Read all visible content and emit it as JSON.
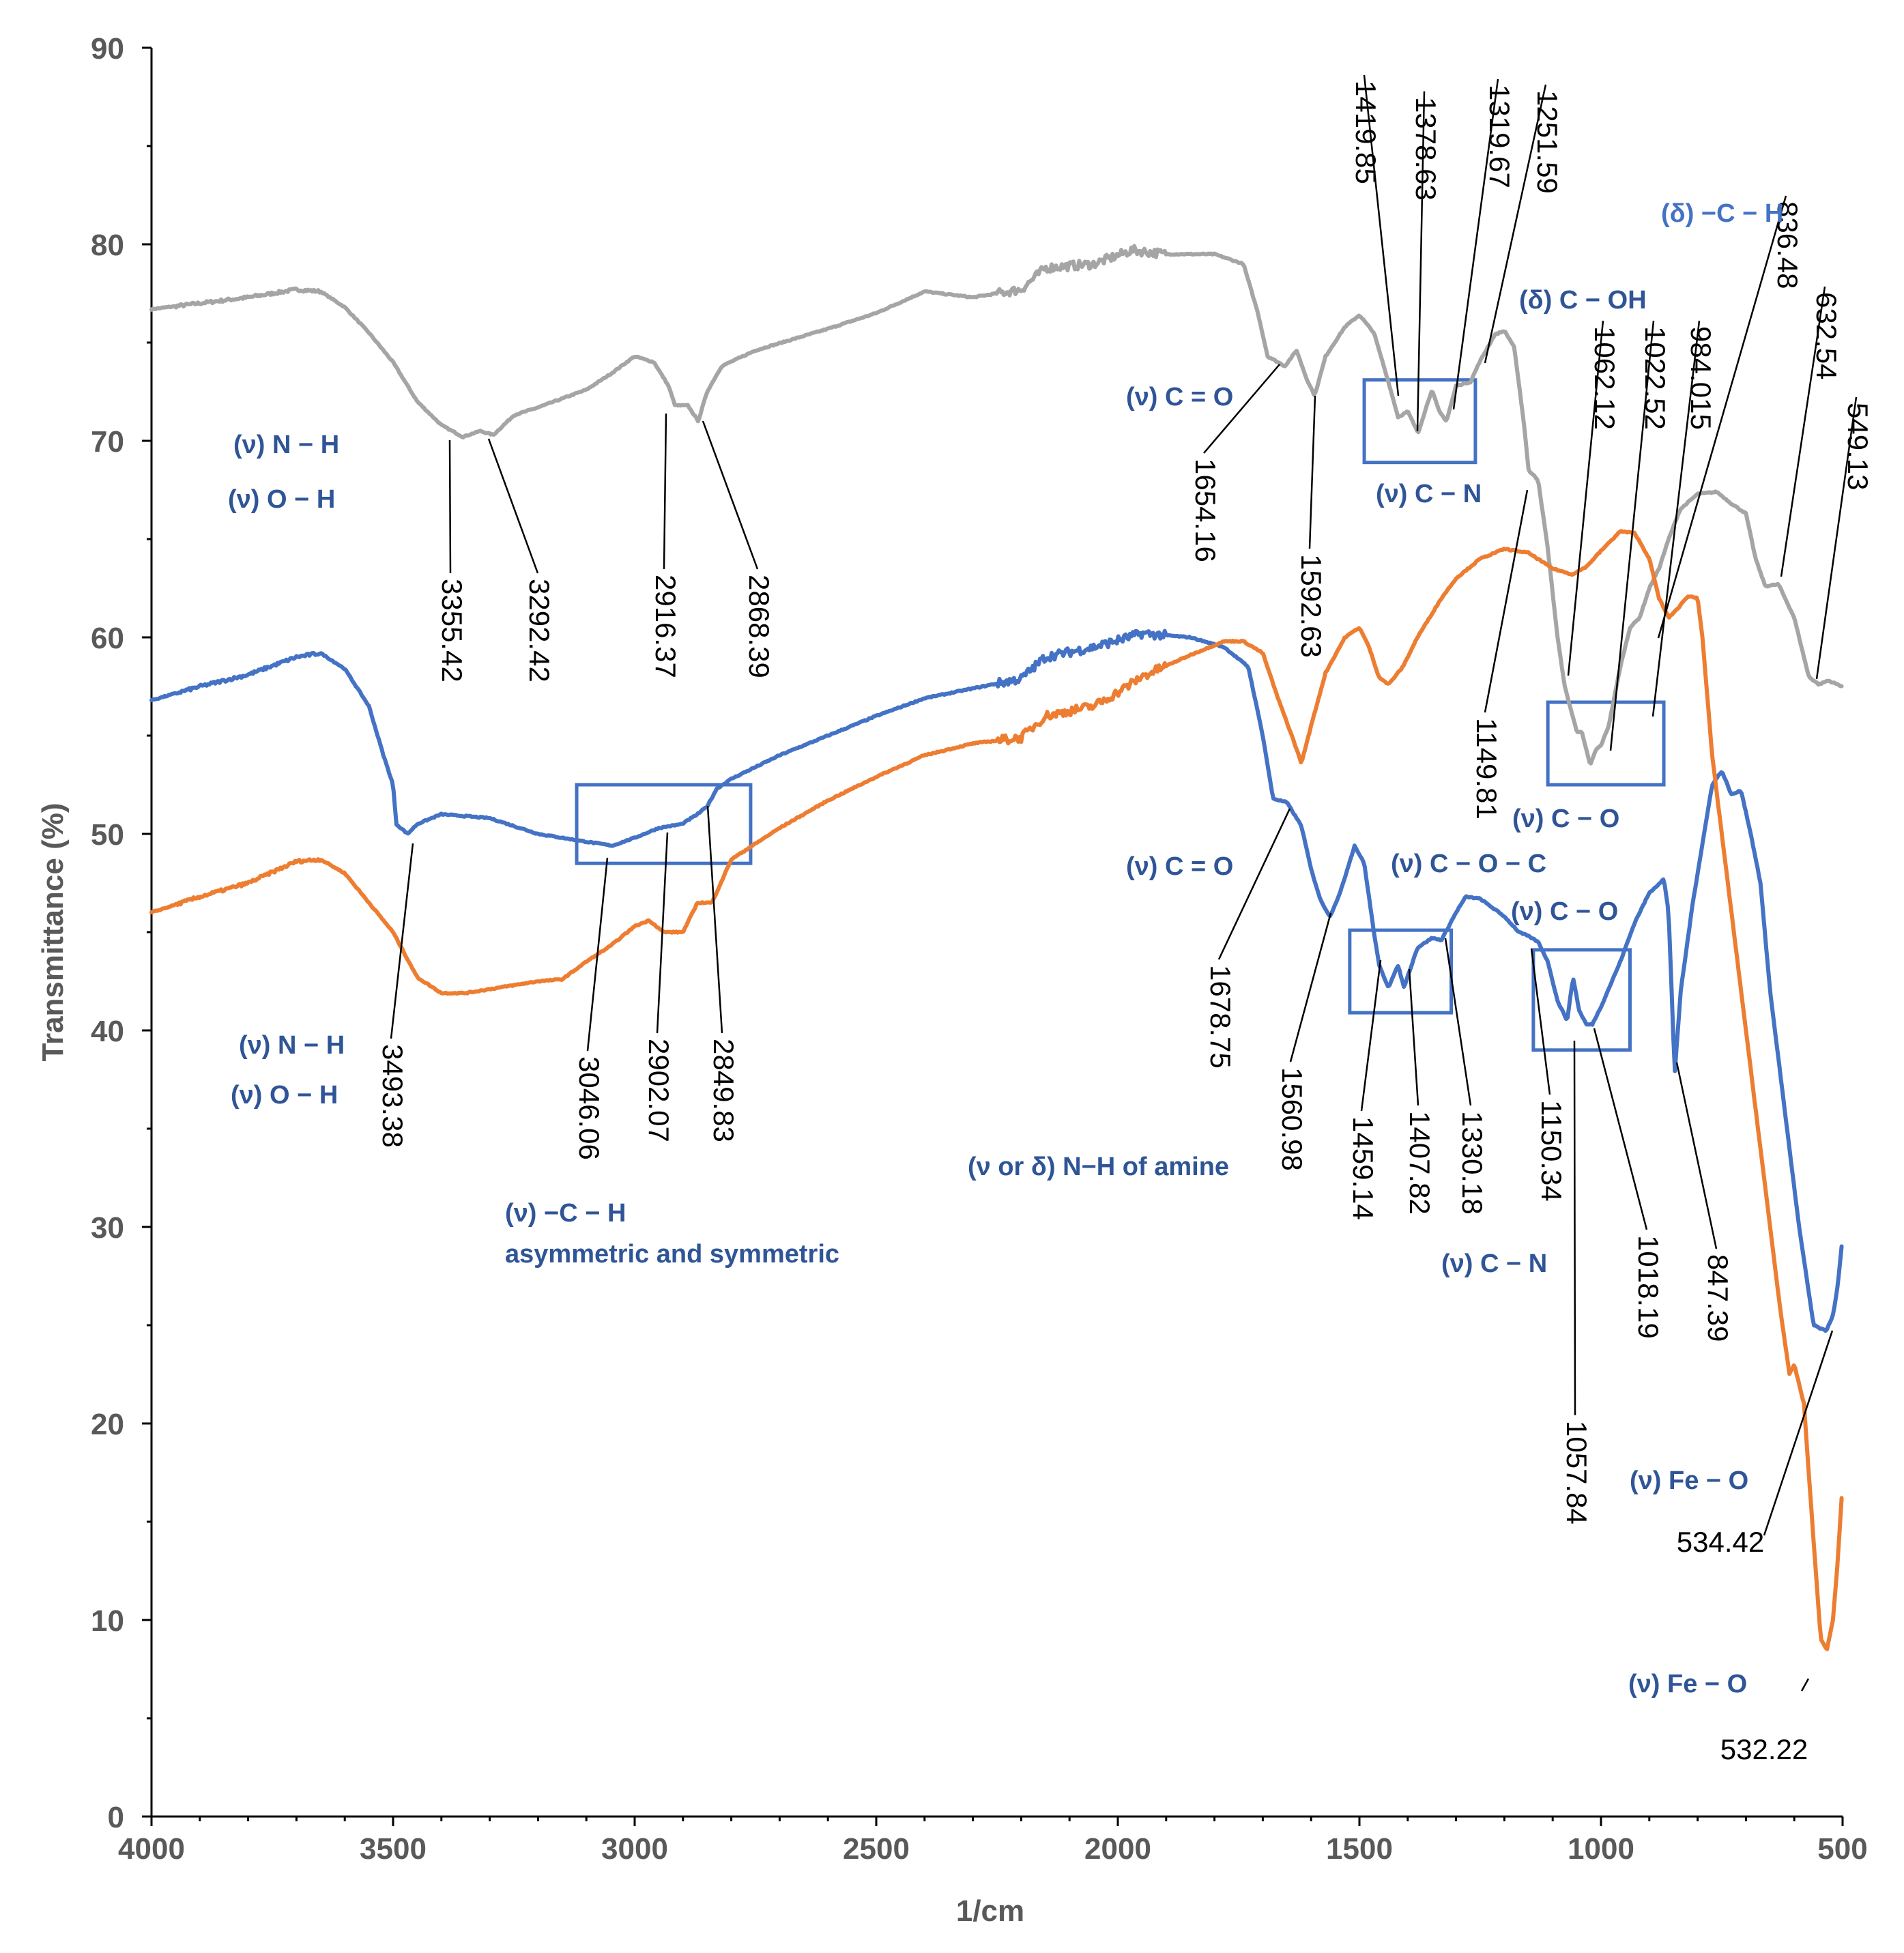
{
  "chart_data": {
    "type": "line",
    "xlabel": "1/cm",
    "ylabel": "Transmittance (%)",
    "xlim": [
      4000,
      500
    ],
    "ylim": [
      0,
      90
    ],
    "x_ticks": [
      4000,
      3500,
      3000,
      2500,
      2000,
      1500,
      1000,
      500
    ],
    "y_ticks": [
      0,
      10,
      20,
      30,
      40,
      50,
      60,
      70,
      80,
      90
    ],
    "series": [
      {
        "name": "gray",
        "color": "#a5a5a5",
        "points": [
          [
            4000,
            76.7
          ],
          [
            3900,
            77.0
          ],
          [
            3800,
            77.3
          ],
          [
            3700,
            77.7
          ],
          [
            3650,
            77.6
          ],
          [
            3600,
            76.8
          ],
          [
            3550,
            75.5
          ],
          [
            3500,
            74.0
          ],
          [
            3450,
            72.0
          ],
          [
            3400,
            70.8
          ],
          [
            3355.42,
            70.2
          ],
          [
            3320,
            70.5
          ],
          [
            3292.42,
            70.3
          ],
          [
            3250,
            71.3
          ],
          [
            3200,
            71.7
          ],
          [
            3100,
            72.6
          ],
          [
            3050,
            73.4
          ],
          [
            3000,
            74.3
          ],
          [
            2960,
            74.0
          ],
          [
            2930,
            72.8
          ],
          [
            2916.37,
            71.8
          ],
          [
            2890,
            71.8
          ],
          [
            2868.39,
            71.0
          ],
          [
            2850,
            72.5
          ],
          [
            2820,
            73.8
          ],
          [
            2750,
            74.6
          ],
          [
            2600,
            75.7
          ],
          [
            2500,
            76.5
          ],
          [
            2400,
            77.6
          ],
          [
            2300,
            77.3
          ],
          [
            2200,
            77.7
          ],
          [
            2150,
            78.8
          ],
          [
            2050,
            79.0
          ],
          [
            1970,
            79.7
          ],
          [
            1900,
            79.5
          ],
          [
            1800,
            79.5
          ],
          [
            1740,
            79.0
          ],
          [
            1710,
            76.5
          ],
          [
            1690,
            74.3
          ],
          [
            1654.16,
            73.8
          ],
          [
            1630,
            74.6
          ],
          [
            1610,
            73.2
          ],
          [
            1592.63,
            72.3
          ],
          [
            1570,
            74.3
          ],
          [
            1530,
            75.8
          ],
          [
            1500,
            76.4
          ],
          [
            1470,
            75.5
          ],
          [
            1440,
            73.0
          ],
          [
            1419.85,
            71.2
          ],
          [
            1400,
            71.5
          ],
          [
            1378.63,
            70.4
          ],
          [
            1350,
            72.6
          ],
          [
            1335,
            71.5
          ],
          [
            1319.67,
            71.0
          ],
          [
            1300,
            72.8
          ],
          [
            1270,
            73.0
          ],
          [
            1251.59,
            74.0
          ],
          [
            1220,
            75.4
          ],
          [
            1200,
            75.6
          ],
          [
            1180,
            74.8
          ],
          [
            1160,
            71.0
          ],
          [
            1149.81,
            68.5
          ],
          [
            1130,
            68.0
          ],
          [
            1110,
            64.5
          ],
          [
            1090,
            60.0
          ],
          [
            1075,
            57.5
          ],
          [
            1062.12,
            56.3
          ],
          [
            1050,
            55.2
          ],
          [
            1040,
            55.2
          ],
          [
            1022.52,
            53.5
          ],
          [
            1010,
            54.3
          ],
          [
            1000,
            54.5
          ],
          [
            984.015,
            55.5
          ],
          [
            960,
            58.5
          ],
          [
            940,
            60.5
          ],
          [
            920,
            61.0
          ],
          [
            900,
            62.5
          ],
          [
            880,
            63.5
          ],
          [
            860,
            65.0
          ],
          [
            836.48,
            66.5
          ],
          [
            800,
            67.3
          ],
          [
            760,
            67.4
          ],
          [
            730,
            66.8
          ],
          [
            700,
            66.3
          ],
          [
            680,
            64.0
          ],
          [
            660,
            62.6
          ],
          [
            632.54,
            62.7
          ],
          [
            600,
            61.0
          ],
          [
            570,
            58.0
          ],
          [
            549.13,
            57.6
          ],
          [
            530,
            57.8
          ],
          [
            500,
            57.5
          ]
        ]
      },
      {
        "name": "blue",
        "color": "#4472c4",
        "points": [
          [
            4000,
            56.8
          ],
          [
            3900,
            57.5
          ],
          [
            3800,
            58.1
          ],
          [
            3700,
            59.0
          ],
          [
            3650,
            59.2
          ],
          [
            3600,
            58.4
          ],
          [
            3550,
            56.5
          ],
          [
            3520,
            54.0
          ],
          [
            3500,
            52.5
          ],
          [
            3493.38,
            50.5
          ],
          [
            3470,
            50.0
          ],
          [
            3450,
            50.5
          ],
          [
            3400,
            51.0
          ],
          [
            3350,
            50.9
          ],
          [
            3300,
            50.8
          ],
          [
            3200,
            50.0
          ],
          [
            3100,
            49.6
          ],
          [
            3046.06,
            49.4
          ],
          [
            3000,
            49.8
          ],
          [
            2950,
            50.3
          ],
          [
            2902.07,
            50.5
          ],
          [
            2870,
            51.0
          ],
          [
            2849.83,
            51.4
          ],
          [
            2830,
            52.3
          ],
          [
            2800,
            52.8
          ],
          [
            2700,
            54.0
          ],
          [
            2600,
            55.0
          ],
          [
            2500,
            56.0
          ],
          [
            2400,
            56.9
          ],
          [
            2300,
            57.4
          ],
          [
            2200,
            57.9
          ],
          [
            2150,
            59.0
          ],
          [
            2050,
            59.5
          ],
          [
            1950,
            60.2
          ],
          [
            1850,
            60.0
          ],
          [
            1780,
            59.5
          ],
          [
            1730,
            58.5
          ],
          [
            1700,
            55.0
          ],
          [
            1678.75,
            51.8
          ],
          [
            1650,
            51.6
          ],
          [
            1620,
            50.4
          ],
          [
            1600,
            48.2
          ],
          [
            1580,
            46.6
          ],
          [
            1560.98,
            45.8
          ],
          [
            1540,
            47.0
          ],
          [
            1510,
            49.4
          ],
          [
            1490,
            48.5
          ],
          [
            1470,
            45.0
          ],
          [
            1459.14,
            43.3
          ],
          [
            1440,
            42.2
          ],
          [
            1420,
            43.3
          ],
          [
            1407.82,
            42.2
          ],
          [
            1380,
            44.2
          ],
          [
            1350,
            44.7
          ],
          [
            1330.18,
            44.6
          ],
          [
            1300,
            46.0
          ],
          [
            1280,
            46.8
          ],
          [
            1250,
            46.7
          ],
          [
            1200,
            45.8
          ],
          [
            1170,
            45.0
          ],
          [
            1150.34,
            44.8
          ],
          [
            1130,
            44.5
          ],
          [
            1110,
            43.5
          ],
          [
            1090,
            41.5
          ],
          [
            1070,
            40.5
          ],
          [
            1057.84,
            42.7
          ],
          [
            1045,
            41.0
          ],
          [
            1030,
            40.3
          ],
          [
            1018.19,
            40.3
          ],
          [
            1000,
            41.2
          ],
          [
            960,
            43.5
          ],
          [
            930,
            45.5
          ],
          [
            900,
            47.0
          ],
          [
            870,
            47.7
          ],
          [
            860,
            46.0
          ],
          [
            847.39,
            37.8
          ],
          [
            835,
            42.0
          ],
          [
            810,
            46.5
          ],
          [
            790,
            49.5
          ],
          [
            770,
            52.5
          ],
          [
            750,
            53.2
          ],
          [
            730,
            52.0
          ],
          [
            710,
            52.2
          ],
          [
            690,
            50.0
          ],
          [
            670,
            47.5
          ],
          [
            650,
            42.0
          ],
          [
            620,
            36.0
          ],
          [
            590,
            30.0
          ],
          [
            560,
            25.0
          ],
          [
            534.42,
            24.7
          ],
          [
            520,
            25.5
          ],
          [
            510,
            27.0
          ],
          [
            500,
            29.5
          ]
        ]
      },
      {
        "name": "orange",
        "color": "#ed7d31",
        "points": [
          [
            4000,
            46.0
          ],
          [
            3900,
            46.8
          ],
          [
            3800,
            47.5
          ],
          [
            3700,
            48.6
          ],
          [
            3650,
            48.7
          ],
          [
            3600,
            48.0
          ],
          [
            3550,
            46.5
          ],
          [
            3500,
            45.0
          ],
          [
            3450,
            42.7
          ],
          [
            3400,
            41.9
          ],
          [
            3350,
            41.9
          ],
          [
            3300,
            42.1
          ],
          [
            3200,
            42.5
          ],
          [
            3150,
            42.6
          ],
          [
            3100,
            43.5
          ],
          [
            3050,
            44.3
          ],
          [
            3000,
            45.3
          ],
          [
            2970,
            45.6
          ],
          [
            2940,
            45.0
          ],
          [
            2900,
            45.0
          ],
          [
            2870,
            46.5
          ],
          [
            2840,
            46.5
          ],
          [
            2800,
            48.7
          ],
          [
            2700,
            50.3
          ],
          [
            2600,
            51.7
          ],
          [
            2500,
            52.9
          ],
          [
            2400,
            54.0
          ],
          [
            2300,
            54.6
          ],
          [
            2200,
            54.9
          ],
          [
            2150,
            56.0
          ],
          [
            2050,
            56.5
          ],
          [
            2000,
            57.2
          ],
          [
            1950,
            58.0
          ],
          [
            1850,
            59.1
          ],
          [
            1780,
            59.8
          ],
          [
            1740,
            59.8
          ],
          [
            1700,
            59.2
          ],
          [
            1670,
            57.0
          ],
          [
            1640,
            55.0
          ],
          [
            1620,
            53.6
          ],
          [
            1600,
            55.5
          ],
          [
            1570,
            58.2
          ],
          [
            1530,
            60.0
          ],
          [
            1500,
            60.5
          ],
          [
            1480,
            59.5
          ],
          [
            1460,
            58.0
          ],
          [
            1440,
            57.6
          ],
          [
            1410,
            58.5
          ],
          [
            1380,
            60.0
          ],
          [
            1330,
            62.0
          ],
          [
            1300,
            63.0
          ],
          [
            1250,
            64.0
          ],
          [
            1200,
            64.5
          ],
          [
            1150,
            64.3
          ],
          [
            1100,
            63.5
          ],
          [
            1060,
            63.2
          ],
          [
            1030,
            63.6
          ],
          [
            1000,
            64.4
          ],
          [
            960,
            65.4
          ],
          [
            930,
            65.3
          ],
          [
            900,
            64.0
          ],
          [
            880,
            62.0
          ],
          [
            860,
            61.0
          ],
          [
            840,
            61.5
          ],
          [
            820,
            62.1
          ],
          [
            800,
            62.0
          ],
          [
            790,
            60.0
          ],
          [
            770,
            54.0
          ],
          [
            740,
            48.0
          ],
          [
            700,
            40.0
          ],
          [
            660,
            32.0
          ],
          [
            630,
            26.0
          ],
          [
            610,
            22.5
          ],
          [
            600,
            23.0
          ],
          [
            580,
            21.0
          ],
          [
            560,
            14.0
          ],
          [
            545,
            9.0
          ],
          [
            532.22,
            8.5
          ],
          [
            520,
            10.0
          ],
          [
            510,
            13.0
          ],
          [
            500,
            17.0
          ]
        ]
      }
    ],
    "peak_labels": [
      {
        "text": "3355.42"
      },
      {
        "text": "3292.42"
      },
      {
        "text": "2916.37"
      },
      {
        "text": "2868.39"
      },
      {
        "text": "1654.16"
      },
      {
        "text": "1592.63"
      },
      {
        "text": "1419.85"
      },
      {
        "text": "1378.63"
      },
      {
        "text": "1319.67"
      },
      {
        "text": "1251.59"
      },
      {
        "text": "1149.81"
      },
      {
        "text": "1062.12"
      },
      {
        "text": "1022.52"
      },
      {
        "text": "984.015"
      },
      {
        "text": "836.48"
      },
      {
        "text": "632.54"
      },
      {
        "text": "549.13"
      },
      {
        "text": "3493.38"
      },
      {
        "text": "3046.06"
      },
      {
        "text": "2902.07"
      },
      {
        "text": "2849.83"
      },
      {
        "text": "1678.75"
      },
      {
        "text": "1560.98"
      },
      {
        "text": "1459.14"
      },
      {
        "text": "1407.82"
      },
      {
        "text": "1330.18"
      },
      {
        "text": "1150.34"
      },
      {
        "text": "1057.84"
      },
      {
        "text": "1018.19"
      },
      {
        "text": "847.39"
      },
      {
        "text": "534.42"
      },
      {
        "text": "532.22"
      }
    ],
    "band_labels": [
      {
        "text": "(ν) N − H"
      },
      {
        "text": "(ν) O − H"
      },
      {
        "text": "(ν) C = O"
      },
      {
        "text": "(ν) C − N"
      },
      {
        "text": "(δ) C − OH"
      },
      {
        "text": "(δ) −C − H"
      },
      {
        "text": "(ν) C − O"
      },
      {
        "text": "(ν) N − H"
      },
      {
        "text": "(ν) O − H"
      },
      {
        "text": "(ν) −C − H"
      },
      {
        "text": "asymmetric and symmetric"
      },
      {
        "text": "(ν) C = O"
      },
      {
        "text": "(ν) C − O − C"
      },
      {
        "text": "(ν) C − O"
      },
      {
        "text": "(ν or δ) N−H of amine"
      },
      {
        "text": "(ν) C − N"
      },
      {
        "text": "(ν) Fe − O"
      },
      {
        "text": "(ν) Fe − O"
      }
    ]
  }
}
